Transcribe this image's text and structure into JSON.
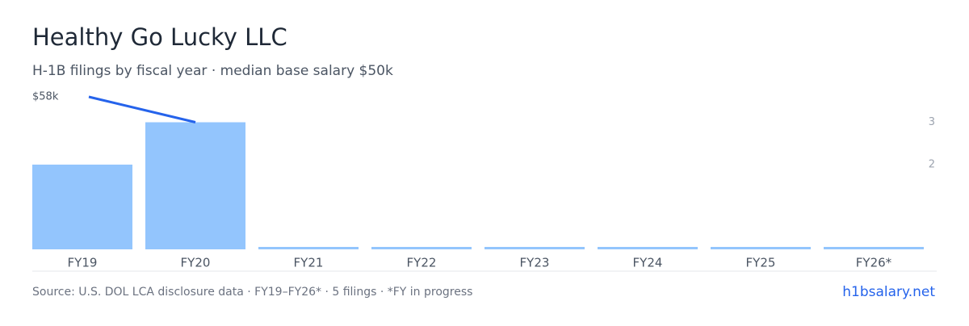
{
  "chart_data": {
    "type": "bar",
    "title": "Healthy Go Lucky LLC",
    "subtitle": "H-1B filings by fiscal year · median base salary $50k",
    "categories": [
      "FY19",
      "FY20",
      "FY21",
      "FY22",
      "FY23",
      "FY24",
      "FY25",
      "FY26*"
    ],
    "series": [
      {
        "name": "Filings",
        "type": "bar",
        "axis": "y2",
        "color": "#93c5fd",
        "values": [
          2,
          3,
          0,
          0,
          0,
          0,
          0,
          0
        ]
      },
      {
        "name": "Median salary",
        "type": "line",
        "color": "#2563eb",
        "values": [
          58000,
          55000,
          null,
          null,
          null,
          null,
          null,
          null
        ]
      }
    ],
    "ylim": [
      40000,
      58000
    ],
    "yticks": [
      {
        "value": 58000,
        "label": "$58k"
      }
    ],
    "y2lim": [
      0,
      3.6
    ],
    "y2ticks": [
      2,
      3
    ],
    "source": "Source: U.S. DOL LCA disclosure data · FY19–FY26* · 5 filings · *FY in progress",
    "brand": "h1bsalary.net"
  }
}
